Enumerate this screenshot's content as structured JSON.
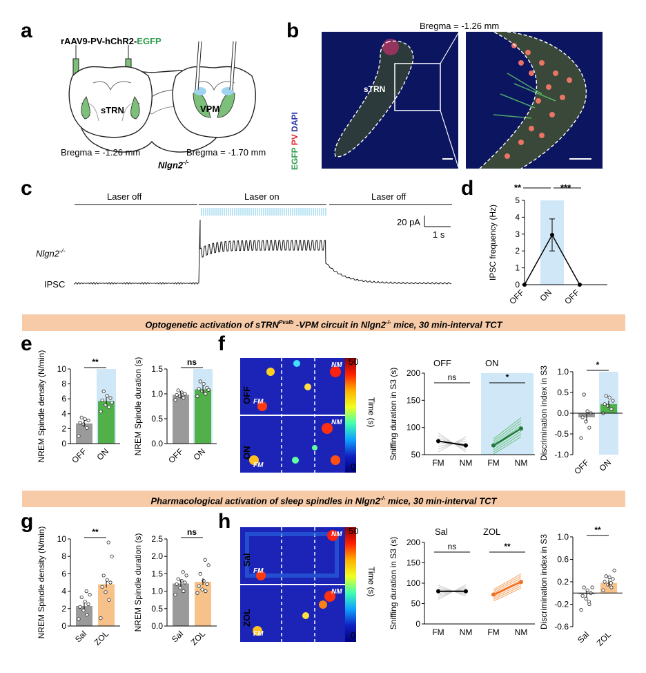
{
  "panel_labels": {
    "a": "a",
    "b": "b",
    "c": "c",
    "d": "d",
    "e": "e",
    "f": "f",
    "g": "g",
    "h": "h"
  },
  "panel_a": {
    "virus": "rAAV9-PV-hChR2-",
    "virus_suffix": "EGFP",
    "region_left": "sTRN",
    "region_right": "VPM",
    "bregma_left": "Bregma = -1.26 mm",
    "bregma_right": "Bregma = -1.70 mm",
    "genotype": "Nlgn2",
    "genotype_sup": "-/-"
  },
  "panel_b": {
    "bregma": "Bregma = -1.26 mm",
    "region": "sTRN",
    "stain_egfp": "EGFP",
    "stain_pv": "PV",
    "stain_dapi": "DAPI",
    "colors": {
      "egfp": "#2e9a4a",
      "pv": "#e0202c",
      "dapi": "#2a33a8",
      "tissue": "#0b1560"
    }
  },
  "panel_c": {
    "laser_off_1": "Laser off",
    "laser_on": "Laser on",
    "laser_off_2": "Laser off",
    "scale_y": "20 pA",
    "scale_x": "1 s",
    "genotype": "Nlgn2",
    "genotype_sup": "-/-",
    "trace_label": "IPSC"
  },
  "panel_d": {
    "ylabel": "IPSC frequency (Hz)",
    "sig_1": "**",
    "sig_2": "***",
    "chart_data": {
      "type": "line",
      "categories": [
        "OFF",
        "ON",
        "OFF"
      ],
      "values": [
        0,
        2.95,
        0
      ],
      "error": [
        0,
        0.95,
        0
      ],
      "ylim": [
        0,
        5
      ],
      "yticks": [
        "0",
        "1",
        "2",
        "3",
        "4",
        "5"
      ],
      "xlabel": "",
      "ylabel": "IPSC frequency (Hz)"
    }
  },
  "banner_1": {
    "text_a": "Optogenetic activation of sTRN",
    "text_sup": "Pvalb",
    "text_b": " -VPM circuit in Nlgn2",
    "text_sup2": "-/-",
    "text_c": " mice, 30 min-interval TCT"
  },
  "banner_2": {
    "text_a": "Pharmacological activation of sleep spindles in Nlgn2",
    "text_sup": "-/-",
    "text_c": " mice, 30 min-interval TCT"
  },
  "panel_e": {
    "density": {
      "ylabel": "NREM Spindle density (N/min)",
      "sig": "**",
      "yticks": [
        "0",
        "2",
        "4",
        "6",
        "8",
        "10"
      ],
      "chart_data": {
        "type": "bar",
        "categories": [
          "OFF",
          "ON"
        ],
        "values": [
          2.7,
          5.7
        ],
        "ylim": [
          0,
          10
        ],
        "points": [
          [
            1.0,
            2.1,
            2.6,
            2.8,
            3.1,
            3.3,
            3.5
          ],
          [
            4.3,
            4.9,
            5.2,
            5.8,
            6.1,
            6.4,
            7.0,
            5.5
          ]
        ]
      }
    },
    "duration": {
      "ylabel": "NREM Spindle duration (s)",
      "sig": "ns",
      "yticks": [
        "0.0",
        "0.5",
        "1.0",
        "1.5"
      ],
      "chart_data": {
        "type": "bar",
        "categories": [
          "OFF",
          "ON"
        ],
        "values": [
          0.98,
          1.09
        ],
        "ylim": [
          0,
          1.5
        ],
        "points": [
          [
            0.88,
            0.92,
            0.95,
            0.98,
            1.0,
            1.03,
            1.07
          ],
          [
            0.95,
            1.0,
            1.05,
            1.1,
            1.12,
            1.2,
            1.25,
            1.08
          ]
        ]
      }
    }
  },
  "panel_f": {
    "heat_labels": [
      "OFF",
      "ON"
    ],
    "fm": "FM",
    "nm": "NM",
    "colorbar_max": "50",
    "colorbar_min": "0",
    "colorbar_label": "Time (s)",
    "sniff": {
      "ylabel": "Sniffing duration in S3 (s)",
      "group_1": "OFF",
      "group_2": "ON",
      "sig_1": "ns",
      "sig_2": "*",
      "yticks": [
        "50",
        "100",
        "150",
        "200"
      ],
      "xticks": [
        "FM",
        "NM",
        "FM",
        "NM"
      ],
      "chart_data": {
        "type": "line",
        "ylim": [
          50,
          200
        ],
        "series": [
          {
            "values": [
              75,
              67
            ]
          },
          {
            "values": [
              67,
              98
            ]
          }
        ]
      }
    },
    "di": {
      "ylabel": "Discrimination index in S3",
      "sig": "*",
      "yticks": [
        "-1.0",
        "-0.5",
        "0.0",
        "0.5",
        "1.0"
      ],
      "chart_data": {
        "type": "bar",
        "categories": [
          "OFF",
          "ON"
        ],
        "values": [
          -0.1,
          0.22
        ],
        "ylim": [
          -1,
          1
        ],
        "points": [
          [
            -0.6,
            -0.35,
            -0.2,
            -0.1,
            0.0,
            0.05,
            0.45
          ],
          [
            0.0,
            0.1,
            0.18,
            0.22,
            0.3,
            0.38,
            0.42
          ]
        ]
      }
    }
  },
  "panel_g": {
    "density": {
      "ylabel": "NREM Spindle density (N/min)",
      "sig": "**",
      "yticks": [
        "0",
        "2",
        "4",
        "6",
        "8",
        "10"
      ],
      "chart_data": {
        "type": "bar",
        "categories": [
          "Sal",
          "ZOL"
        ],
        "values": [
          2.3,
          4.8
        ],
        "ylim": [
          0,
          10
        ],
        "points": [
          [
            0.8,
            1.3,
            1.8,
            2.2,
            2.5,
            2.8,
            3.3,
            3.6,
            4.0
          ],
          [
            0.9,
            3.0,
            3.9,
            4.5,
            5.0,
            5.3,
            5.8,
            8.0,
            9.6
          ]
        ]
      }
    },
    "duration": {
      "ylabel": "NREM Spindle duration (s)",
      "sig": "ns",
      "yticks": [
        "0.0",
        "0.5",
        "1.0",
        "1.5",
        "2.0",
        "2.5"
      ],
      "chart_data": {
        "type": "bar",
        "categories": [
          "Sal",
          "ZOL"
        ],
        "values": [
          1.22,
          1.27
        ],
        "ylim": [
          0,
          2.5
        ],
        "points": [
          [
            0.9,
            1.0,
            1.1,
            1.2,
            1.25,
            1.3,
            1.35,
            1.45,
            1.55
          ],
          [
            0.95,
            1.0,
            1.05,
            1.15,
            1.2,
            1.3,
            1.5,
            1.75,
            1.9
          ]
        ]
      }
    }
  },
  "panel_h": {
    "heat_labels": [
      "Sal",
      "ZOL"
    ],
    "fm": "FM",
    "nm": "NM",
    "colorbar_max": "50",
    "colorbar_min": "0",
    "colorbar_label": "Time (s)",
    "sniff": {
      "ylabel": "Sniffing duration in S3 (s)",
      "group_1": "Sal",
      "group_2": "ZOL",
      "sig_1": "ns",
      "sig_2": "**",
      "yticks": [
        "0",
        "50",
        "100",
        "150",
        "200"
      ],
      "xticks": [
        "FM",
        "NM",
        "FM",
        "NM"
      ],
      "chart_data": {
        "type": "line",
        "ylim": [
          0,
          200
        ],
        "series": [
          {
            "values": [
              80,
              80
            ]
          },
          {
            "values": [
              72,
              103
            ]
          }
        ]
      }
    },
    "di": {
      "ylabel": "Discrimination index in S3",
      "sig": "**",
      "yticks": [
        "-0.6",
        "-0.2",
        "0.2",
        "0.6",
        "1.0"
      ],
      "chart_data": {
        "type": "bar",
        "categories": [
          "Sal",
          "ZOL"
        ],
        "values": [
          -0.02,
          0.18
        ],
        "ylim": [
          -0.6,
          1.0
        ],
        "points": [
          [
            -0.3,
            -0.2,
            -0.1,
            -0.05,
            0.0,
            0.05,
            0.1,
            0.1,
            -0.15
          ],
          [
            0.05,
            0.1,
            0.15,
            0.2,
            0.25,
            0.28,
            0.3,
            0.4,
            0.18
          ]
        ]
      }
    }
  }
}
